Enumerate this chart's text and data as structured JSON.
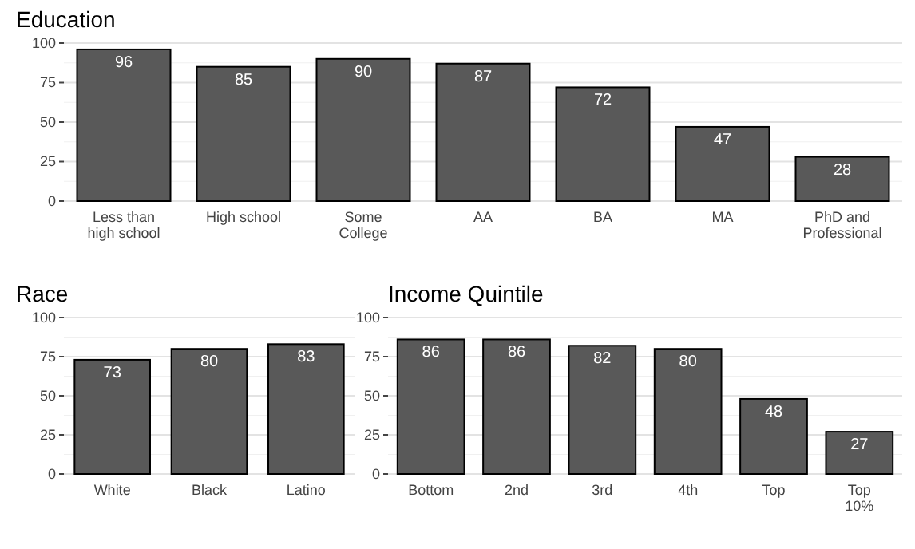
{
  "chart_data": [
    {
      "type": "bar",
      "title": "Education",
      "categories": [
        "Less than\nhigh school",
        "High school",
        "Some\nCollege",
        "AA",
        "BA",
        "MA",
        "PhD and\nProfessional"
      ],
      "values": [
        96,
        85,
        90,
        87,
        72,
        47,
        28
      ],
      "color": "#595959",
      "ylim": [
        0,
        100
      ],
      "yticks": [
        0,
        25,
        50,
        75,
        100
      ],
      "grid": "y",
      "data_labels": true
    },
    {
      "type": "bar",
      "title": "Race",
      "categories": [
        "White",
        "Black",
        "Latino"
      ],
      "values": [
        73,
        80,
        83
      ],
      "color": "#595959",
      "ylim": [
        0,
        100
      ],
      "yticks": [
        0,
        25,
        50,
        75,
        100
      ],
      "grid": "y",
      "data_labels": true
    },
    {
      "type": "bar",
      "title": "Income Quintile",
      "categories": [
        "Bottom",
        "2nd",
        "3rd",
        "4th",
        "Top",
        "Top\n10%"
      ],
      "values": [
        86,
        86,
        82,
        80,
        48,
        27
      ],
      "color": "#595959",
      "ylim": [
        0,
        100
      ],
      "yticks": [
        0,
        25,
        50,
        75,
        100
      ],
      "grid": "y",
      "data_labels": true
    }
  ]
}
